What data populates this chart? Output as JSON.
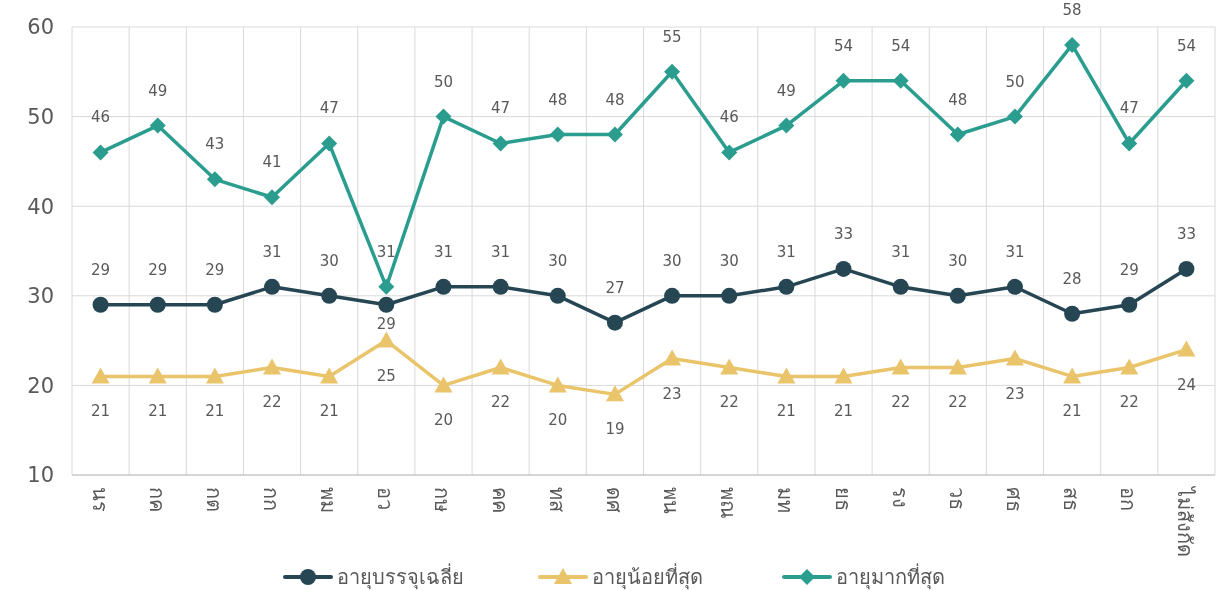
{
  "chart_data": {
    "type": "line",
    "categories": [
      "นร",
      "กค",
      "กต",
      "กก",
      "พม",
      "อว",
      "กษ",
      "คค",
      "ทส",
      "ดศ",
      "พน",
      "พณ",
      "มท",
      "ยธ",
      "รง",
      "วธ",
      "ศธ",
      "สธ",
      "อก",
      "ไม่สังกัด"
    ],
    "series": [
      {
        "name": "อายุบรรจุเฉลี่ย",
        "color": "#264653",
        "marker": "circle",
        "values": [
          29,
          29,
          29,
          31,
          30,
          29,
          31,
          31,
          30,
          27,
          30,
          30,
          31,
          33,
          31,
          30,
          31,
          28,
          29,
          33
        ]
      },
      {
        "name": "อายุน้อยที่สุด",
        "color": "#e9c46a",
        "marker": "triangle",
        "values": [
          21,
          21,
          21,
          22,
          21,
          25,
          20,
          22,
          20,
          19,
          23,
          22,
          21,
          21,
          22,
          22,
          23,
          21,
          22,
          24
        ]
      },
      {
        "name": "อายุมากที่สุด",
        "color": "#2a9d8f",
        "marker": "diamond",
        "values": [
          46,
          49,
          43,
          41,
          47,
          31,
          50,
          47,
          48,
          48,
          55,
          46,
          49,
          54,
          54,
          48,
          50,
          58,
          47,
          54
        ]
      }
    ],
    "ylim": [
      10,
      60
    ],
    "yticks": [
      10,
      20,
      30,
      40,
      50,
      60
    ],
    "grid": true,
    "legend": "bottom",
    "data_labels": true
  }
}
